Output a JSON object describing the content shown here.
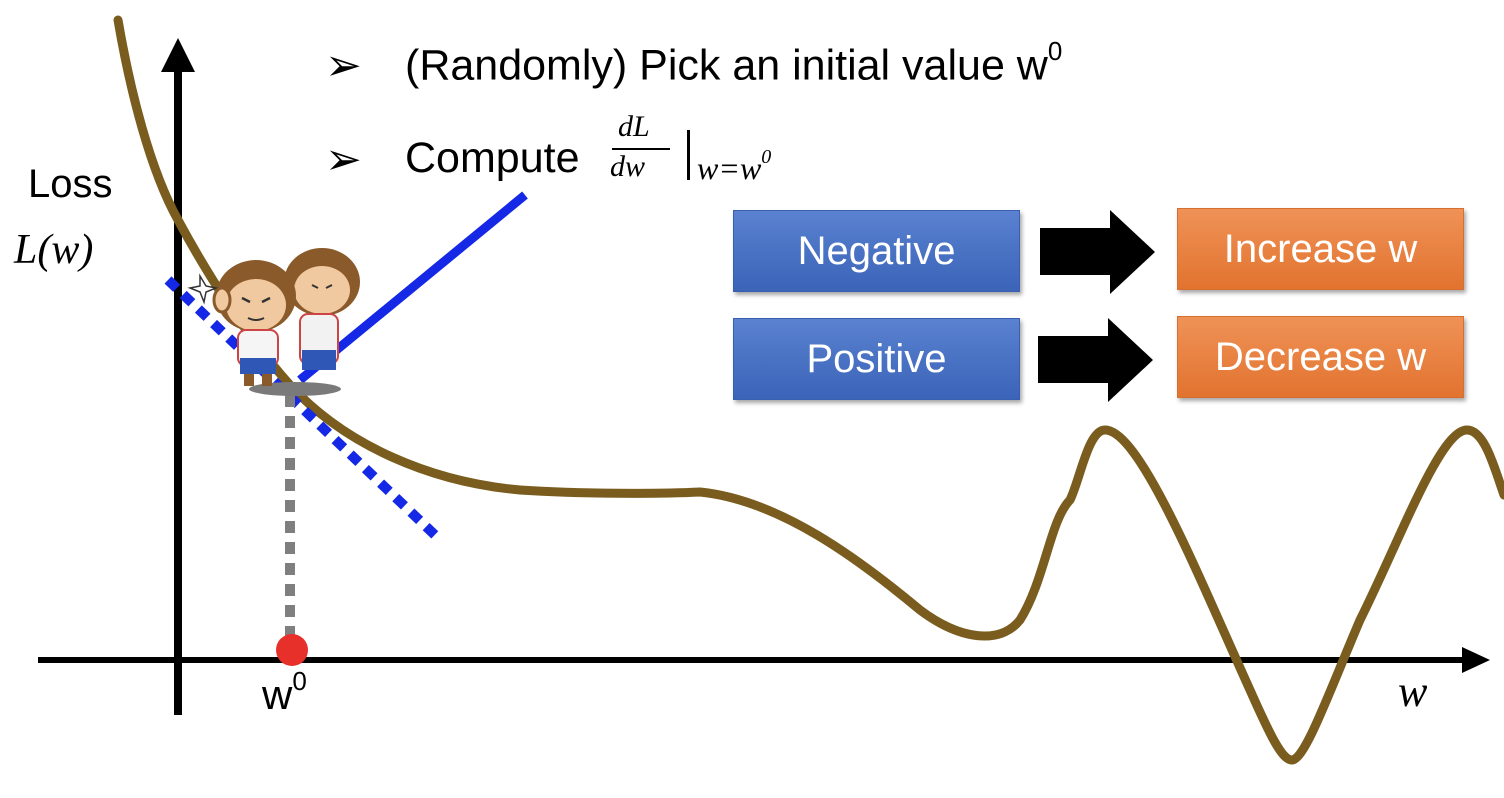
{
  "steps": [
    {
      "bullet": "➢",
      "text": "(Randomly) Pick an initial value w",
      "sup": "0"
    },
    {
      "bullet": "➢",
      "text": "Compute "
    }
  ],
  "derivative": {
    "numerator": "dL",
    "denominator": "dw",
    "eval_text": "w=w",
    "eval_sup": "0"
  },
  "axes": {
    "y_label_line1": "Loss",
    "y_label_line2": "L(w)",
    "x_label": "w",
    "marker_label": "w",
    "marker_sup": "0"
  },
  "rules": [
    {
      "condition": "Negative",
      "action": "Increase w"
    },
    {
      "condition": "Positive",
      "action": "Decrease w"
    }
  ],
  "colors": {
    "curve": "#7a5c1e",
    "tangent": "#1428e6",
    "marker": "#e8302a",
    "guide": "#7f7f7f",
    "condition_box": "#4470c4",
    "action_box": "#e87d3e"
  },
  "icons": [
    "monkey-character-icon",
    "arrow-right-icon"
  ]
}
